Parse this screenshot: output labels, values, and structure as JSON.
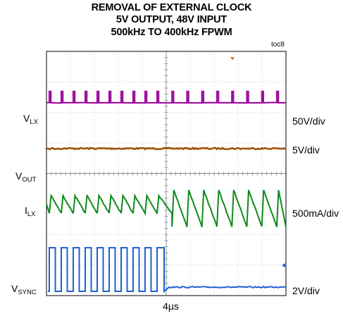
{
  "chart_data": {
    "type": "line",
    "title": [
      "REMOVAL OF EXTERNAL CLOCK",
      "5V OUTPUT, 48V INPUT",
      "500kHz TO 400kHz FPWM"
    ],
    "tag": "toc8",
    "timebase": "4µs",
    "grid": true,
    "divisions": {
      "x": 10,
      "y": 8
    },
    "clock_removed_at_div": 5.0,
    "frequency_before_khz": 500,
    "frequency_after_khz": 400,
    "channels": [
      {
        "id": "vlx",
        "label_main": "V",
        "label_sub": "LX",
        "scale": "50V/div",
        "color": "#a010a0"
      },
      {
        "id": "vout",
        "label_main": "V",
        "label_sub": "OUT",
        "scale": "5V/div",
        "color": "#a0520a"
      },
      {
        "id": "ilx",
        "label_main": "I",
        "label_sub": "LX",
        "scale": "500mA/div",
        "color": "#0f8a1c"
      },
      {
        "id": "vsync",
        "label_main": "V",
        "label_sub": "SYNC",
        "scale": "2V/div",
        "color": "#1f5fd0"
      }
    ]
  }
}
